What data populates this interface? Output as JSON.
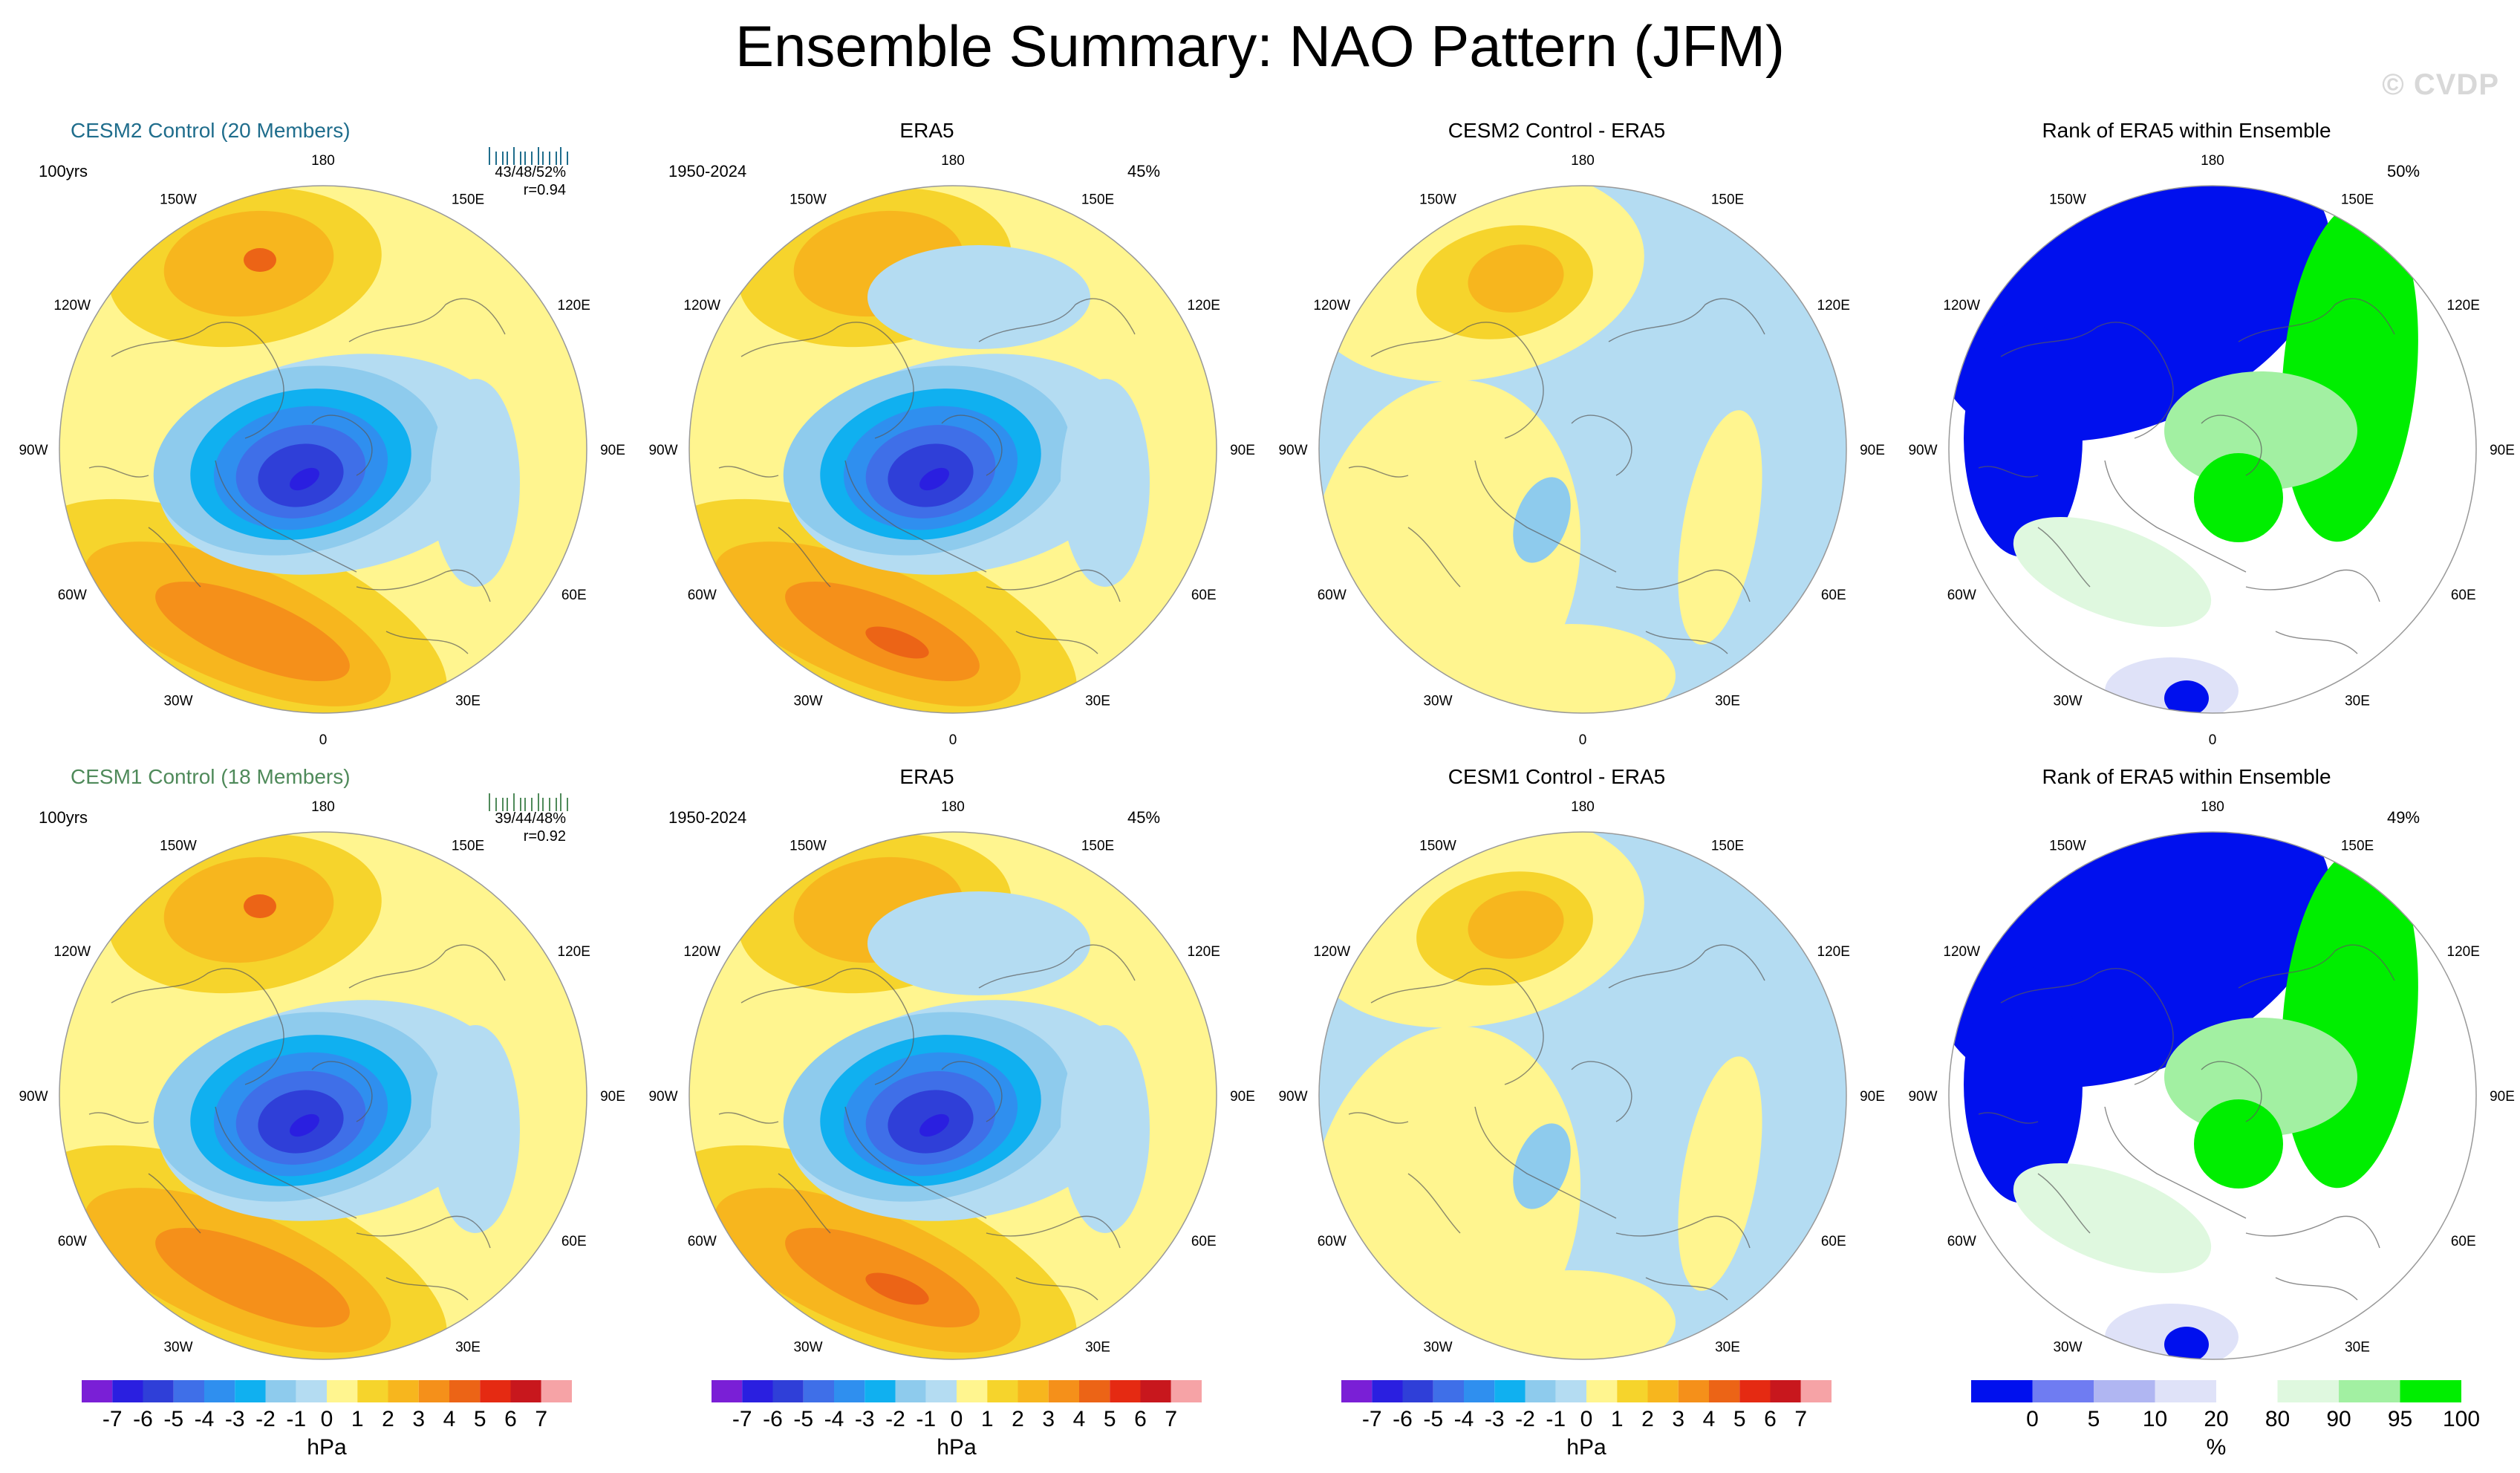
{
  "title": "Ensemble Summary: NAO Pattern (JFM)",
  "watermark": "© CVDP",
  "lon_labels": [
    "180",
    "150E",
    "120E",
    "90E",
    "60E",
    "30E",
    "0",
    "30W",
    "60W",
    "90W",
    "120W",
    "150W"
  ],
  "rows": [
    {
      "model_title": "CESM2 Control (20 Members)",
      "model_color": "#1f6d8c",
      "model_years": "100yrs",
      "model_stats_line1": "43/48/52%",
      "model_stats_line2": "r=0.94",
      "obs_title": "ERA5",
      "obs_years": "1950-2024",
      "obs_pct": "45%",
      "diff_title": "CESM2 Control - ERA5",
      "rank_title": "Rank of ERA5 within Ensemble",
      "rank_pct": "50%"
    },
    {
      "model_title": "CESM1 Control (18 Members)",
      "model_color": "#4f8a5a",
      "model_years": "100yrs",
      "model_stats_line1": "39/44/48%",
      "model_stats_line2": "r=0.92",
      "obs_title": "ERA5",
      "obs_years": "1950-2024",
      "obs_pct": "45%",
      "diff_title": "CESM1 Control - ERA5",
      "rank_title": "Rank of ERA5 within Ensemble",
      "rank_pct": "49%"
    }
  ],
  "colorbar_hpa": {
    "labels": [
      "-7",
      "-6",
      "-5",
      "-4",
      "-3",
      "-2",
      "-1",
      "0",
      "1",
      "2",
      "3",
      "4",
      "5",
      "6",
      "7"
    ],
    "units": "hPa",
    "colors": [
      "#7a1fd6",
      "#2a1fe0",
      "#2f3fd8",
      "#3f6fe8",
      "#2f8fef",
      "#10b0f0",
      "#8ecbed",
      "#b4dcf2",
      "#fff58f",
      "#f6d42c",
      "#f7b61e",
      "#f5901a",
      "#ec6416",
      "#e52a12",
      "#c8171d",
      "#f6a3a6"
    ]
  },
  "colorbar_rank": {
    "labels": [
      "0",
      "5",
      "10",
      "20",
      "80",
      "90",
      "95",
      "100"
    ],
    "units": "%",
    "colors": [
      "#0010ee",
      "#6f7cf2",
      "#b0b6f2",
      "#dfe2f8",
      "#ffffff",
      "#dff8df",
      "#a2f0a2",
      "#00ee00"
    ]
  }
}
